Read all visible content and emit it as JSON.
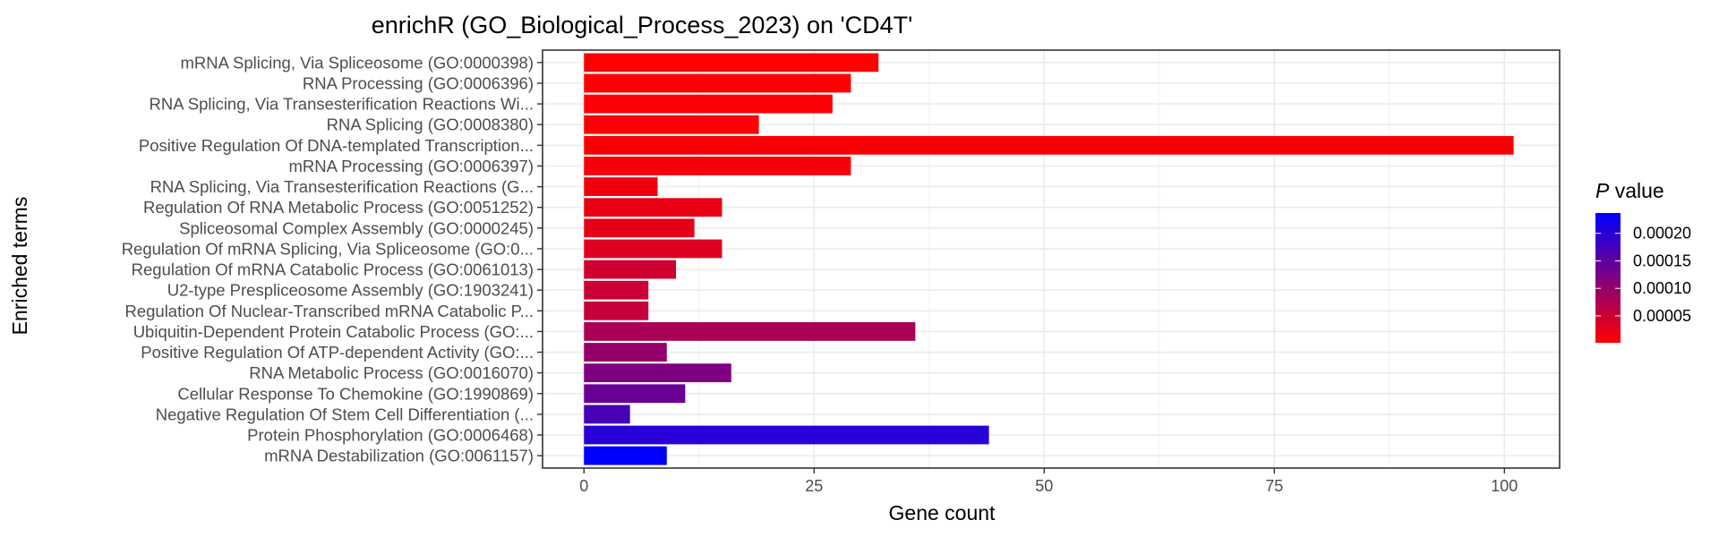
{
  "chart_data": {
    "type": "bar",
    "orientation": "horizontal",
    "title": "enrichR (GO_Biological_Process_2023) on 'CD4T'",
    "xlabel": "Gene count",
    "ylabel": "Enriched terms",
    "xlim": [
      -4.5,
      106
    ],
    "xticks": [
      0,
      25,
      50,
      75,
      100
    ],
    "grid": true,
    "categories": [
      "mRNA Splicing, Via Spliceosome (GO:0000398)",
      "RNA Processing (GO:0006396)",
      "RNA Splicing, Via Transesterification Reactions Wi...",
      "RNA Splicing (GO:0008380)",
      "Positive Regulation Of DNA-templated Transcription...",
      "mRNA Processing (GO:0006397)",
      "RNA Splicing, Via Transesterification Reactions (G...",
      "Regulation Of RNA Metabolic Process (GO:0051252)",
      "Spliceosomal Complex Assembly (GO:0000245)",
      "Regulation Of mRNA Splicing, Via Spliceosome (GO:0...",
      "Regulation Of mRNA Catabolic Process (GO:0061013)",
      "U2-type Prespliceosome Assembly (GO:1903241)",
      "Regulation Of Nuclear-Transcribed mRNA Catabolic P...",
      "Ubiquitin-Dependent Protein Catabolic Process (GO:...",
      "Positive Regulation Of ATP-dependent Activity (GO:...",
      "RNA Metabolic Process (GO:0016070)",
      "Cellular Response To Chemokine (GO:1990869)",
      "Negative Regulation Of Stem Cell Differentiation (...",
      "Protein Phosphorylation (GO:0006468)",
      "mRNA Destabilization (GO:0061157)"
    ],
    "values": [
      32,
      29,
      27,
      19,
      101,
      29,
      8,
      15,
      12,
      15,
      10,
      7,
      7,
      36,
      9,
      16,
      11,
      5,
      44,
      9
    ],
    "p_values": [
      1e-06,
      3e-06,
      4e-06,
      5e-06,
      7e-06,
      9e-06,
      1.5e-05,
      2e-05,
      2.5e-05,
      3e-05,
      4.5e-05,
      5e-05,
      5.5e-05,
      8e-05,
      0.0001,
      0.00012,
      0.00014,
      0.00017,
      0.0002,
      0.000237
    ],
    "colorbar": {
      "title_italic": "P",
      "title_rest": " value",
      "low_color": "#ff0000",
      "high_color": "#0000ff",
      "range": [
        1e-06,
        0.000237
      ],
      "ticks": [
        5e-05,
        0.0001,
        0.00015,
        0.0002
      ],
      "tick_labels": [
        "0.00005",
        "0.00010",
        "0.00015",
        "0.00020"
      ],
      "placement": "right"
    }
  }
}
